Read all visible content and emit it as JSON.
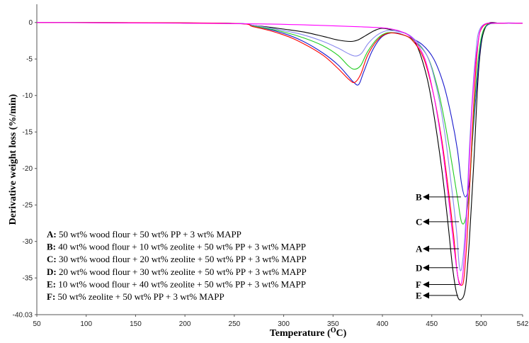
{
  "chart_data": {
    "type": "line",
    "xlabel_main": "Temperature (",
    "xlabel_sup": "O",
    "xlabel_end": "C)",
    "ylabel": "Derivative weight loss (%/min)",
    "xlim": [
      50,
      542
    ],
    "ylim": [
      -40.03,
      2.5
    ],
    "x_ticks": [
      "50",
      "100",
      "150",
      "200",
      "250",
      "300",
      "350",
      "400",
      "450",
      "500",
      "542"
    ],
    "y_ticks": [
      "0",
      "-5",
      "-10",
      "-15",
      "-20",
      "-25",
      "-30",
      "-35",
      "-40.03"
    ],
    "x_tick_values": [
      50,
      100,
      150,
      200,
      250,
      300,
      350,
      400,
      450,
      500,
      542
    ],
    "y_tick_values": [
      0,
      -5,
      -10,
      -15,
      -20,
      -25,
      -30,
      -35,
      -40.03
    ],
    "legend": [
      {
        "key": "A:",
        "text": " 50 wt% wood flour + 50 wt% PP + 3 wt% MAPP"
      },
      {
        "key": "B:",
        "text": " 40 wt% wood flour + 10 wt% zeolite + 50 wt% PP + 3 wt% MAPP"
      },
      {
        "key": "C:",
        "text": " 30 wt% wood flour + 20 wt% zeolite + 50 wt% PP + 3 wt% MAPP"
      },
      {
        "key": "D:",
        "text": " 20 wt% wood flour + 30 wt% zeolite + 50 wt% PP + 3 wt% MAPP"
      },
      {
        "key": "E:",
        "text": " 10 wt% wood flour + 40 wt% zeolite + 50 wt% PP + 3 wt% MAPP"
      },
      {
        "key": "F:",
        "text": " 50 wt% zeolite + 50 wt% PP + 3 wt% MAPP"
      }
    ],
    "annotations": [
      {
        "label": "B",
        "x": 481,
        "y": -23.9
      },
      {
        "label": "C",
        "x": 479,
        "y": -27.3
      },
      {
        "label": "A",
        "x": 479,
        "y": -31.0
      },
      {
        "label": "D",
        "x": 478,
        "y": -33.6
      },
      {
        "label": "F",
        "x": 479,
        "y": -35.9
      },
      {
        "label": "E",
        "x": 478,
        "y": -37.4
      }
    ],
    "series": [
      {
        "label": "A",
        "color": "#000000",
        "x": [
          50,
          240,
          270,
          300,
          320,
          340,
          355,
          368,
          375,
          383,
          392,
          400,
          412,
          425,
          435,
          445,
          452,
          460,
          466,
          471,
          475,
          479,
          484,
          488,
          493,
          498,
          505,
          520,
          542
        ],
        "y": [
          0,
          -0.1,
          -0.4,
          -0.9,
          -1.3,
          -1.9,
          -2.4,
          -2.6,
          -2.4,
          -1.8,
          -1.1,
          -0.8,
          -1.1,
          -1.6,
          -3.2,
          -7.5,
          -12.5,
          -20.0,
          -27.0,
          -33.5,
          -37.0,
          -38.0,
          -36.5,
          -30.0,
          -18.0,
          -5.5,
          -0.5,
          -0.1,
          -0.1
        ]
      },
      {
        "label": "B",
        "color": "#1a1acd",
        "x": [
          50,
          240,
          270,
          300,
          320,
          340,
          355,
          365,
          371,
          376,
          381,
          390,
          400,
          412,
          425,
          440,
          452,
          462,
          470,
          476,
          480,
          484,
          488,
          491,
          495,
          500,
          506,
          520,
          542
        ],
        "y": [
          0,
          -0.1,
          -0.5,
          -1.5,
          -2.6,
          -4.2,
          -5.8,
          -7.3,
          -8.2,
          -8.5,
          -6.8,
          -3.8,
          -1.9,
          -1.4,
          -1.9,
          -3.0,
          -5.0,
          -8.5,
          -13.0,
          -17.5,
          -22.0,
          -23.9,
          -22.0,
          -16.5,
          -9.5,
          -2.5,
          -0.4,
          -0.1,
          -0.1
        ]
      },
      {
        "label": "C",
        "color": "#22cc22",
        "x": [
          50,
          240,
          270,
          300,
          320,
          340,
          355,
          366,
          372,
          378,
          385,
          395,
          405,
          418,
          430,
          445,
          455,
          463,
          470,
          476,
          480,
          484,
          488,
          492,
          497,
          504,
          520,
          542
        ],
        "y": [
          0,
          -0.1,
          -0.5,
          -1.3,
          -2.1,
          -3.2,
          -4.5,
          -6.0,
          -6.4,
          -5.9,
          -4.0,
          -2.2,
          -1.4,
          -1.6,
          -2.3,
          -4.5,
          -8.5,
          -13.5,
          -19.0,
          -24.0,
          -27.3,
          -27.0,
          -23.0,
          -14.0,
          -5.0,
          -0.6,
          -0.1,
          -0.1
        ]
      },
      {
        "label": "D",
        "color": "#8888ee",
        "x": [
          50,
          240,
          270,
          300,
          320,
          340,
          355,
          366,
          373,
          379,
          386,
          396,
          406,
          418,
          430,
          445,
          455,
          463,
          470,
          475,
          478,
          481,
          485,
          489,
          494,
          500,
          520,
          542
        ],
        "y": [
          0,
          -0.1,
          -0.4,
          -1.1,
          -1.7,
          -2.6,
          -3.5,
          -4.3,
          -4.6,
          -4.2,
          -2.8,
          -1.6,
          -1.1,
          -1.3,
          -2.0,
          -4.5,
          -9.0,
          -15.0,
          -22.5,
          -28.5,
          -33.5,
          -33.0,
          -26.0,
          -15.0,
          -5.0,
          -0.6,
          -0.1,
          -0.1
        ]
      },
      {
        "label": "E",
        "color": "#ff0000",
        "x": [
          50,
          240,
          270,
          300,
          320,
          340,
          355,
          366,
          372,
          378,
          385,
          395,
          405,
          418,
          430,
          442,
          452,
          460,
          466,
          472,
          476,
          480,
          483,
          487,
          491,
          496,
          502,
          520,
          542
        ],
        "y": [
          0,
          -0.1,
          -0.6,
          -1.7,
          -2.9,
          -4.5,
          -6.3,
          -7.8,
          -8.2,
          -7.1,
          -4.5,
          -2.4,
          -1.5,
          -1.6,
          -2.4,
          -5.0,
          -10.0,
          -16.0,
          -22.0,
          -29.0,
          -34.5,
          -36.0,
          -34.5,
          -26.5,
          -15.0,
          -4.0,
          -0.5,
          -0.1,
          -0.1
        ]
      },
      {
        "label": "F",
        "color": "#ff00ff",
        "x": [
          50,
          120,
          200,
          280,
          340,
          380,
          405,
          420,
          432,
          443,
          452,
          460,
          466,
          471,
          475,
          478,
          481,
          484,
          487,
          491,
          496,
          502,
          520,
          542
        ],
        "y": [
          0,
          -0.05,
          -0.1,
          -0.2,
          -0.4,
          -0.6,
          -0.8,
          -1.3,
          -2.4,
          -5.0,
          -10.0,
          -16.5,
          -23.0,
          -29.0,
          -33.5,
          -35.9,
          -35.0,
          -30.0,
          -22.0,
          -11.0,
          -3.5,
          -0.4,
          -0.1,
          -0.1
        ]
      }
    ]
  }
}
